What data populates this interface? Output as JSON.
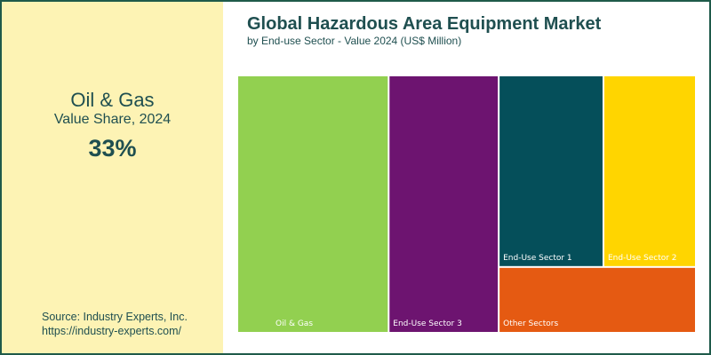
{
  "highlight": {
    "segment": "Oil & Gas",
    "label": "Value Share, 2024",
    "value": "33%"
  },
  "source": {
    "line1": "Source: Industry Experts, Inc.",
    "line2": "https://industry-experts.com/"
  },
  "chart_data": {
    "type": "treemap",
    "title": "Global Hazardous Area Equipment Market",
    "subtitle": "by End-use Sector - Value 2024 (US$ Million)",
    "items": [
      {
        "name": "Oil & Gas",
        "share": 33,
        "color": "#92d050"
      },
      {
        "name": "End-Use Sector 3",
        "share": 24,
        "color": "#6d1470"
      },
      {
        "name": "End-Use Sector 1",
        "share": 17,
        "color": "#054f5a"
      },
      {
        "name": "End-Use Sector 2",
        "share": 15,
        "color": "#ffd500"
      },
      {
        "name": "Other Sectors",
        "share": 11,
        "color": "#e55a12"
      }
    ],
    "label_color": "#ffffff"
  }
}
